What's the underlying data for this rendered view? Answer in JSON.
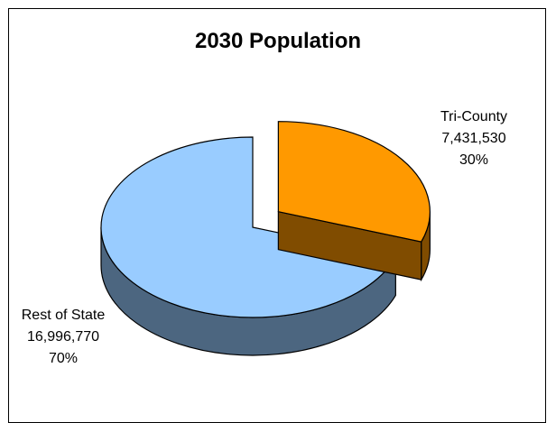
{
  "chart_data": {
    "type": "pie",
    "title": "2030 Population",
    "slices": [
      {
        "label": "Tri-County",
        "value": 7431530,
        "value_text": "7,431,530",
        "percent_text": "30%",
        "color": "#ff9900",
        "side_color": "#804c00",
        "exploded": true
      },
      {
        "label": "Rest of State",
        "value": 16996770,
        "value_text": "16,996,770",
        "percent_text": "70%",
        "color": "#99ccff",
        "side_color": "#4c6680",
        "exploded": false
      }
    ],
    "legend": false
  }
}
